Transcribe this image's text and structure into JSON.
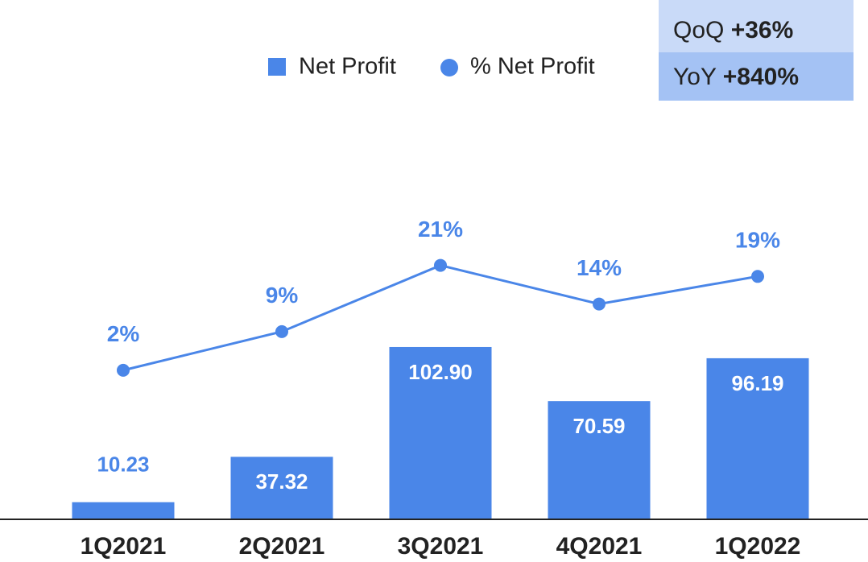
{
  "chart_data": {
    "type": "bar",
    "categories": [
      "1Q2021",
      "2Q2021",
      "3Q2021",
      "4Q2021",
      "1Q2022"
    ],
    "series": [
      {
        "name": "Net Profit",
        "type": "bar",
        "color": "#4a86e8",
        "values": [
          10.23,
          37.32,
          102.9,
          70.59,
          96.19
        ],
        "value_labels": [
          "10.23",
          "37.32",
          "102.90",
          "70.59",
          "96.19"
        ]
      },
      {
        "name": "% Net Profit",
        "type": "line",
        "axis": "y2",
        "color": "#4a86e8",
        "values": [
          2,
          9,
          21,
          14,
          19
        ],
        "value_labels": [
          "2%",
          "9%",
          "21%",
          "14%",
          "19%"
        ]
      }
    ],
    "ylim": [
      0,
      300
    ],
    "y2lim": [
      -25,
      66
    ],
    "annotations": [
      {
        "label": "QoQ",
        "value": "+36%"
      },
      {
        "label": "YoY",
        "value": "+840%"
      }
    ]
  }
}
